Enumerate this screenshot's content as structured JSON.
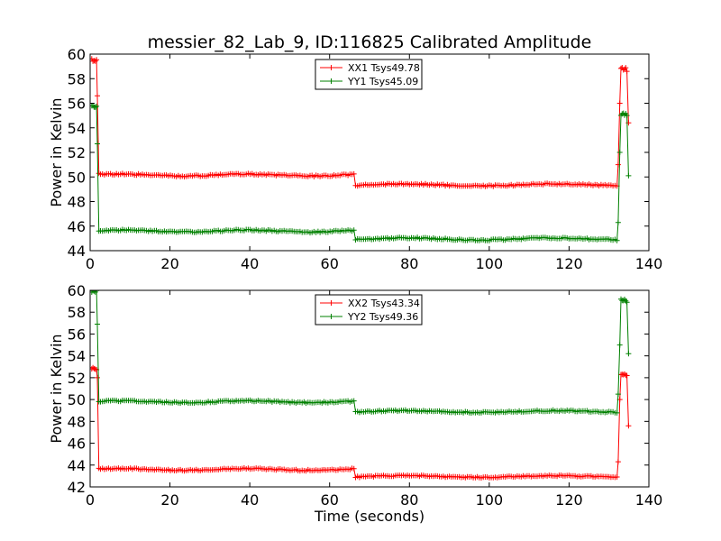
{
  "figure": {
    "title": "messier_82_Lab_9, ID:116825 Calibrated Amplitude",
    "xlabel": "Time (seconds)"
  },
  "chart_data": [
    {
      "type": "line",
      "ylabel": "Power in Kelvin",
      "xlim": [
        0,
        140
      ],
      "ylim": [
        44,
        60
      ],
      "xticks": [
        0,
        20,
        40,
        60,
        80,
        100,
        120,
        140
      ],
      "yticks": [
        44,
        46,
        48,
        50,
        52,
        54,
        56,
        58,
        60
      ],
      "legend_position": "top-center",
      "series": [
        {
          "name": "XX1 Tsys49.78",
          "color": "#ff0000",
          "profile": {
            "start_high": 59.5,
            "start_drop": [
              [
                1.8,
                56.6
              ],
              [
                2.2,
                50.3
              ]
            ],
            "plateau1": 50.15,
            "step_time": 66.5,
            "plateau2": 49.35,
            "end_rise": [
              [
                132.3,
                51.0
              ],
              [
                132.7,
                56.0
              ]
            ],
            "end_high": 58.8,
            "tail": [
              [
                134.5,
                58.6
              ],
              [
                134.9,
                54.4
              ]
            ]
          }
        },
        {
          "name": "YY1 Tsys45.09",
          "color": "#008000",
          "profile": {
            "start_high": 55.8,
            "start_drop": [
              [
                1.8,
                52.7
              ],
              [
                2.2,
                45.6
              ]
            ],
            "plateau1": 45.6,
            "step_time": 66.5,
            "plateau2": 44.95,
            "end_rise": [
              [
                132.3,
                46.3
              ],
              [
                132.7,
                52.0
              ]
            ],
            "end_high": 55.1,
            "tail": [
              [
                134.5,
                55.0
              ],
              [
                134.9,
                50.1
              ]
            ]
          }
        }
      ]
    },
    {
      "type": "line",
      "ylabel": "Power in Kelvin",
      "xlim": [
        0,
        140
      ],
      "ylim": [
        42,
        60
      ],
      "xticks": [
        0,
        20,
        40,
        60,
        80,
        100,
        120,
        140
      ],
      "yticks": [
        42,
        44,
        46,
        48,
        50,
        52,
        54,
        56,
        58,
        60
      ],
      "legend_position": "top-center",
      "series": [
        {
          "name": "XX2 Tsys43.34",
          "color": "#ff0000",
          "profile": {
            "start_high": 52.8,
            "start_drop": [
              [
                1.8,
                52.0
              ],
              [
                2.2,
                43.7
              ]
            ],
            "plateau1": 43.6,
            "step_time": 66.5,
            "plateau2": 42.95,
            "end_rise": [
              [
                132.3,
                44.3
              ],
              [
                132.7,
                50.0
              ]
            ],
            "end_high": 52.3,
            "tail": [
              [
                134.5,
                52.2
              ],
              [
                134.9,
                47.6
              ]
            ]
          }
        },
        {
          "name": "YY2 Tsys49.36",
          "color": "#008000",
          "profile": {
            "start_high": 59.9,
            "start_drop": [
              [
                1.8,
                56.9
              ],
              [
                2.2,
                49.8
              ]
            ],
            "plateau1": 49.8,
            "step_time": 66.5,
            "plateau2": 48.9,
            "end_rise": [
              [
                132.3,
                50.5
              ],
              [
                132.7,
                55.0
              ]
            ],
            "end_high": 59.1,
            "tail": [
              [
                134.5,
                58.9
              ],
              [
                134.9,
                54.2
              ]
            ]
          }
        }
      ]
    }
  ]
}
